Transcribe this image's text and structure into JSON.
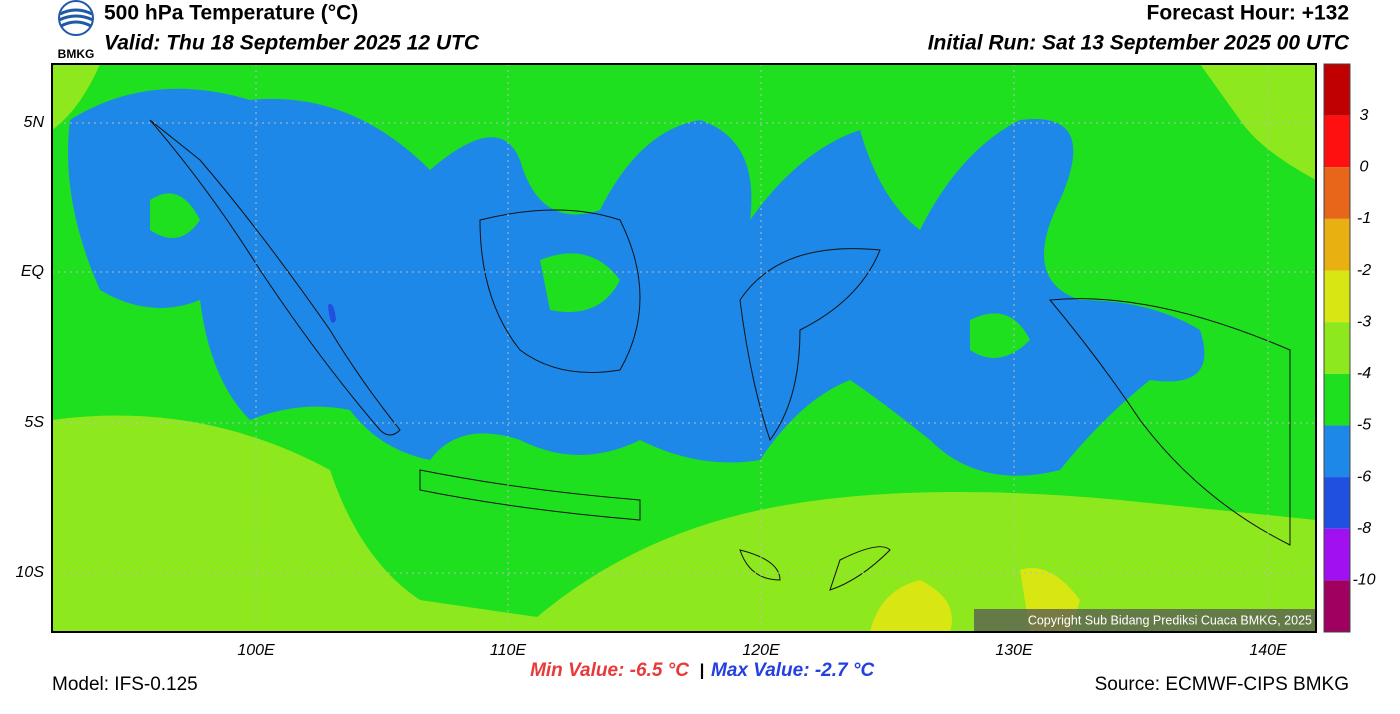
{
  "header": {
    "logo_text": "BMKG",
    "title": "500 hPa Temperature (°C)",
    "valid": "Valid: Thu 18 September 2025 12 UTC",
    "forecast_hour": "Forecast Hour: +132",
    "initial_run": "Initial Run: Sat 13 September 2025 00 UTC"
  },
  "map": {
    "lat_labels": [
      "5N",
      "EQ",
      "5S",
      "10S"
    ],
    "lon_labels": [
      "100E",
      "110E",
      "120E",
      "130E",
      "140E"
    ],
    "copyright": "Copyright Sub Bidang Prediksi Cuaca BMKG, 2025"
  },
  "colorbar": {
    "colors": [
      "#c00000",
      "#ff1010",
      "#e8661a",
      "#e8b010",
      "#d8e612",
      "#8ee81e",
      "#1ee01e",
      "#1e88e8",
      "#2050e0",
      "#a010f0",
      "#a00060"
    ],
    "labels": [
      "3",
      "0",
      "-1",
      "-2",
      "-3",
      "-4",
      "-5",
      "-6",
      "-8",
      "-10"
    ]
  },
  "footer": {
    "model": "Model: IFS-0.125",
    "min_value": "Min Value: -6.5 °C",
    "separator": "|",
    "max_value": "Max Value: -2.7 °C",
    "source": "Source: ECMWF-CIPS BMKG"
  }
}
